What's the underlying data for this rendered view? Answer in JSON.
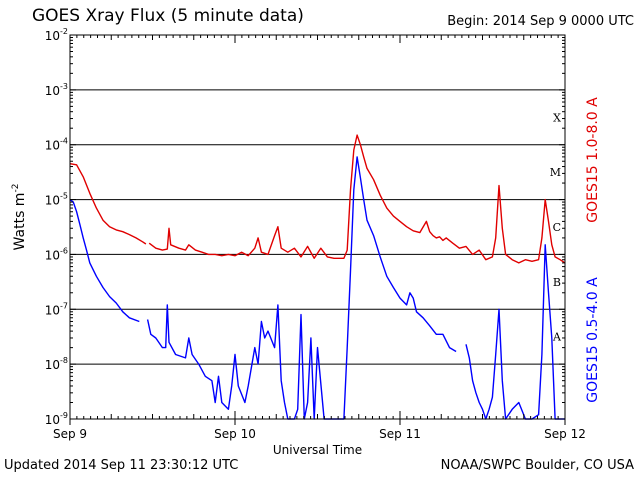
{
  "header": {
    "title": "GOES Xray Flux (5 minute data)",
    "begin": "Begin:  2014 Sep 9 0000 UTC"
  },
  "footer": {
    "updated": "Updated 2014 Sep 11 23:30:12 UTC",
    "credit": "NOAA/SWPC Boulder, CO USA"
  },
  "colors": {
    "long": "#e00000",
    "short": "#0000ff",
    "grid": "#000000"
  },
  "chart_data": {
    "type": "line",
    "xlabel": "Universal Time",
    "ylabel_base": "Watts m",
    "ylabel_exp": "-2",
    "y_log": true,
    "ylim": [
      1e-09,
      0.01
    ],
    "xlim": [
      0,
      3
    ],
    "x_units": "days since 2014 Sep 9 0000 UTC",
    "x_ticks": [
      {
        "x": 0,
        "label": "Sep 9"
      },
      {
        "x": 1,
        "label": "Sep 10"
      },
      {
        "x": 2,
        "label": "Sep 11"
      },
      {
        "x": 3,
        "label": "Sep 12"
      }
    ],
    "y_ticks": [
      {
        "exp": -9,
        "label": "10",
        "sup": "-9"
      },
      {
        "exp": -8,
        "label": "10",
        "sup": "-8"
      },
      {
        "exp": -7,
        "label": "10",
        "sup": "-7"
      },
      {
        "exp": -6,
        "label": "10",
        "sup": "-6"
      },
      {
        "exp": -5,
        "label": "10",
        "sup": "-5"
      },
      {
        "exp": -4,
        "label": "10",
        "sup": "-4"
      },
      {
        "exp": -3,
        "label": "10",
        "sup": "-3"
      },
      {
        "exp": -2,
        "label": "10",
        "sup": "-2"
      }
    ],
    "flare_classes": [
      {
        "label": "A",
        "exp": -7.5
      },
      {
        "label": "B",
        "exp": -6.5
      },
      {
        "label": "C",
        "exp": -5.5
      },
      {
        "label": "M",
        "exp": -4.5
      },
      {
        "label": "X",
        "exp": -3.5
      }
    ],
    "grid": true,
    "series": [
      {
        "name": "GOES15 1.0-8.0 A",
        "color": "#e00000",
        "points": [
          [
            0.0,
            4.5e-05
          ],
          [
            0.04,
            4.3e-05
          ],
          [
            0.08,
            2.6e-05
          ],
          [
            0.12,
            1.3e-05
          ],
          [
            0.16,
            7e-06
          ],
          [
            0.2,
            4.2e-06
          ],
          [
            0.24,
            3.2e-06
          ],
          [
            0.28,
            2.8e-06
          ],
          [
            0.32,
            2.6e-06
          ],
          [
            0.36,
            2.3e-06
          ],
          [
            0.4,
            2e-06
          ],
          [
            0.44,
            1.7e-06
          ],
          [
            0.46,
            1.55e-06
          ],
          null,
          [
            0.48,
            1.6e-06
          ],
          [
            0.52,
            1.3e-06
          ],
          [
            0.56,
            1.2e-06
          ],
          [
            0.59,
            1.25e-06
          ],
          [
            0.6,
            3e-06
          ],
          [
            0.61,
            1.5e-06
          ],
          [
            0.66,
            1.3e-06
          ],
          [
            0.7,
            1.2e-06
          ],
          [
            0.72,
            1.5e-06
          ],
          [
            0.76,
            1.2e-06
          ],
          [
            0.8,
            1.1e-06
          ],
          [
            0.84,
            1e-06
          ],
          [
            0.88,
            1e-06
          ],
          [
            0.92,
            9.5e-07
          ],
          [
            0.96,
            1e-06
          ],
          [
            1.0,
            9.5e-07
          ],
          [
            1.04,
            1.1e-06
          ],
          [
            1.08,
            9.5e-07
          ],
          [
            1.12,
            1.3e-06
          ],
          [
            1.14,
            2e-06
          ],
          [
            1.16,
            1.1e-06
          ],
          [
            1.2,
            1e-06
          ],
          [
            1.24,
            2.2e-06
          ],
          [
            1.26,
            3.2e-06
          ],
          [
            1.28,
            1.3e-06
          ],
          [
            1.32,
            1.1e-06
          ],
          [
            1.36,
            1.3e-06
          ],
          [
            1.4,
            9e-07
          ],
          [
            1.44,
            1.4e-06
          ],
          [
            1.48,
            8.5e-07
          ],
          [
            1.52,
            1.3e-06
          ],
          [
            1.56,
            9e-07
          ],
          [
            1.6,
            8.5e-07
          ],
          [
            1.66,
            8.5e-07
          ],
          [
            1.68,
            1.2e-06
          ],
          [
            1.7,
            1.5e-05
          ],
          [
            1.72,
            8e-05
          ],
          [
            1.74,
            0.00015
          ],
          [
            1.76,
            0.0001
          ],
          [
            1.78,
            6e-05
          ],
          [
            1.8,
            3.7e-05
          ],
          [
            1.84,
            2.3e-05
          ],
          [
            1.88,
            1.2e-05
          ],
          [
            1.92,
            7e-06
          ],
          [
            1.96,
            5e-06
          ],
          [
            2.0,
            4e-06
          ],
          [
            2.04,
            3.2e-06
          ],
          [
            2.08,
            2.7e-06
          ],
          [
            2.12,
            2.5e-06
          ],
          [
            2.16,
            4e-06
          ],
          [
            2.18,
            2.6e-06
          ],
          [
            2.2,
            2.2e-06
          ],
          [
            2.22,
            2e-06
          ],
          [
            2.24,
            2.1e-06
          ],
          [
            2.26,
            1.8e-06
          ],
          [
            2.28,
            2e-06
          ],
          [
            2.32,
            1.6e-06
          ],
          [
            2.36,
            1.3e-06
          ],
          [
            2.4,
            1.4e-06
          ],
          [
            2.44,
            1e-06
          ],
          [
            2.48,
            1.2e-06
          ],
          [
            2.52,
            8e-07
          ],
          [
            2.56,
            9e-07
          ],
          [
            2.58,
            2e-06
          ],
          [
            2.6,
            1.8e-05
          ],
          [
            2.62,
            3e-06
          ],
          [
            2.64,
            1e-06
          ],
          [
            2.68,
            8e-07
          ],
          [
            2.72,
            7e-07
          ],
          [
            2.76,
            8e-07
          ],
          [
            2.8,
            7.5e-07
          ],
          [
            2.84,
            8e-07
          ],
          [
            2.86,
            2e-06
          ],
          [
            2.88,
            1e-05
          ],
          [
            2.9,
            4e-06
          ],
          [
            2.92,
            1.5e-06
          ],
          [
            2.94,
            9e-07
          ],
          [
            2.97,
            8e-07
          ],
          [
            3.0,
            7e-07
          ]
        ]
      },
      {
        "name": "GOES15 0.5-4.0 A",
        "color": "#0000ff",
        "points": [
          [
            0.0,
            1e-05
          ],
          [
            0.02,
            9e-06
          ],
          [
            0.04,
            6e-06
          ],
          [
            0.06,
            3.5e-06
          ],
          [
            0.08,
            2e-06
          ],
          [
            0.1,
            1.2e-06
          ],
          [
            0.12,
            7e-07
          ],
          [
            0.16,
            4e-07
          ],
          [
            0.2,
            2.5e-07
          ],
          [
            0.24,
            1.7e-07
          ],
          [
            0.28,
            1.3e-07
          ],
          [
            0.32,
            9e-08
          ],
          [
            0.36,
            7e-08
          ],
          [
            0.42,
            6e-08
          ],
          null,
          [
            0.47,
            6.5e-08
          ],
          [
            0.49,
            3.5e-08
          ],
          [
            0.52,
            3e-08
          ],
          [
            0.56,
            2e-08
          ],
          [
            0.58,
            2e-08
          ],
          [
            0.59,
            1.2e-07
          ],
          [
            0.6,
            2.5e-08
          ],
          [
            0.64,
            1.5e-08
          ],
          [
            0.7,
            1.3e-08
          ],
          [
            0.72,
            3e-08
          ],
          [
            0.74,
            1.5e-08
          ],
          [
            0.78,
            1e-08
          ],
          [
            0.82,
            6e-09
          ],
          [
            0.86,
            5e-09
          ],
          [
            0.88,
            2e-09
          ],
          [
            0.9,
            6e-09
          ],
          [
            0.92,
            2e-09
          ],
          [
            0.96,
            1.5e-09
          ],
          [
            0.98,
            4e-09
          ],
          [
            1.0,
            1.5e-08
          ],
          [
            1.02,
            4e-09
          ],
          [
            1.06,
            2e-09
          ],
          [
            1.08,
            4e-09
          ],
          [
            1.12,
            2e-08
          ],
          [
            1.14,
            1e-08
          ],
          [
            1.16,
            6e-08
          ],
          [
            1.18,
            3e-08
          ],
          [
            1.2,
            4e-08
          ],
          [
            1.24,
            2e-08
          ],
          [
            1.26,
            1.2e-07
          ],
          [
            1.28,
            5e-09
          ],
          [
            1.3,
            2e-09
          ],
          [
            1.32,
            1e-09
          ],
          [
            1.36,
            1e-09
          ],
          [
            1.38,
            1.5e-09
          ],
          [
            1.4,
            8e-08
          ],
          [
            1.42,
            1e-09
          ],
          [
            1.44,
            2e-09
          ],
          [
            1.46,
            3e-08
          ],
          [
            1.48,
            1e-09
          ],
          [
            1.5,
            2e-08
          ],
          [
            1.54,
            1e-09
          ],
          [
            1.58,
            1e-09
          ],
          [
            1.62,
            1e-09
          ],
          [
            1.66,
            1e-09
          ],
          [
            1.68,
            2e-08
          ],
          [
            1.7,
            5e-07
          ],
          [
            1.72,
            1.5e-05
          ],
          [
            1.74,
            6e-05
          ],
          [
            1.76,
            2.5e-05
          ],
          [
            1.78,
            1e-05
          ],
          [
            1.8,
            4.2e-06
          ],
          [
            1.84,
            2.2e-06
          ],
          [
            1.88,
            9e-07
          ],
          [
            1.92,
            4e-07
          ],
          [
            1.96,
            2.5e-07
          ],
          [
            2.0,
            1.6e-07
          ],
          [
            2.04,
            1.2e-07
          ],
          [
            2.06,
            2e-07
          ],
          [
            2.08,
            1.6e-07
          ],
          [
            2.1,
            9e-08
          ],
          [
            2.14,
            7e-08
          ],
          [
            2.18,
            5e-08
          ],
          [
            2.22,
            3.5e-08
          ],
          [
            2.26,
            3.5e-08
          ],
          [
            2.3,
            2e-08
          ],
          [
            2.34,
            1.7e-08
          ],
          null,
          [
            2.4,
            2.3e-08
          ],
          [
            2.42,
            1.3e-08
          ],
          [
            2.44,
            5e-09
          ],
          [
            2.46,
            3e-09
          ],
          [
            2.48,
            2e-09
          ],
          [
            2.5,
            1.5e-09
          ],
          [
            2.52,
            1e-09
          ],
          [
            2.54,
            1.5e-09
          ],
          [
            2.56,
            2.5e-09
          ],
          [
            2.58,
            1.5e-08
          ],
          [
            2.6,
            1e-07
          ],
          [
            2.62,
            5e-09
          ],
          [
            2.64,
            1e-09
          ],
          [
            2.68,
            1.5e-09
          ],
          [
            2.72,
            2e-09
          ],
          [
            2.76,
            1e-09
          ],
          [
            2.8,
            1e-09
          ],
          [
            2.84,
            1.2e-09
          ],
          [
            2.86,
            1.5e-08
          ],
          [
            2.88,
            1.5e-06
          ],
          [
            2.9,
            2e-07
          ],
          [
            2.92,
            3e-08
          ],
          [
            2.94,
            1e-09
          ],
          [
            2.97,
            1e-09
          ],
          [
            3.0,
            1e-09
          ]
        ]
      }
    ]
  }
}
